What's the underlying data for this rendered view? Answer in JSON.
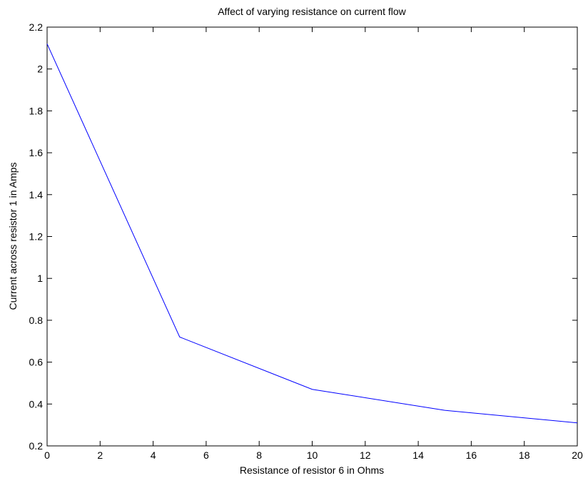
{
  "chart_data": {
    "type": "line",
    "title": "Affect of varying resistance on current flow",
    "xlabel": "Resistance of resistor 6 in Ohms",
    "ylabel": "Current across resistor 1 in Amps",
    "xlim": [
      0,
      20
    ],
    "ylim": [
      0.2,
      2.2
    ],
    "xticks": [
      0,
      2,
      4,
      6,
      8,
      10,
      12,
      14,
      16,
      18,
      20
    ],
    "yticks": [
      0.2,
      0.4,
      0.6,
      0.8,
      1,
      1.2,
      1.4,
      1.6,
      1.8,
      2,
      2.2
    ],
    "xtick_labels": [
      "0",
      "2",
      "4",
      "6",
      "8",
      "10",
      "12",
      "14",
      "16",
      "18",
      "20"
    ],
    "ytick_labels": [
      "0.2",
      "0.4",
      "0.6",
      "0.8",
      "1",
      "1.2",
      "1.4",
      "1.6",
      "1.8",
      "2",
      "2.2"
    ],
    "grid": false,
    "legend": "none",
    "series": [
      {
        "color": "#0000ff",
        "x": [
          0,
          5,
          10,
          15,
          20
        ],
        "y": [
          2.12,
          0.72,
          0.47,
          0.37,
          0.31
        ]
      }
    ]
  }
}
